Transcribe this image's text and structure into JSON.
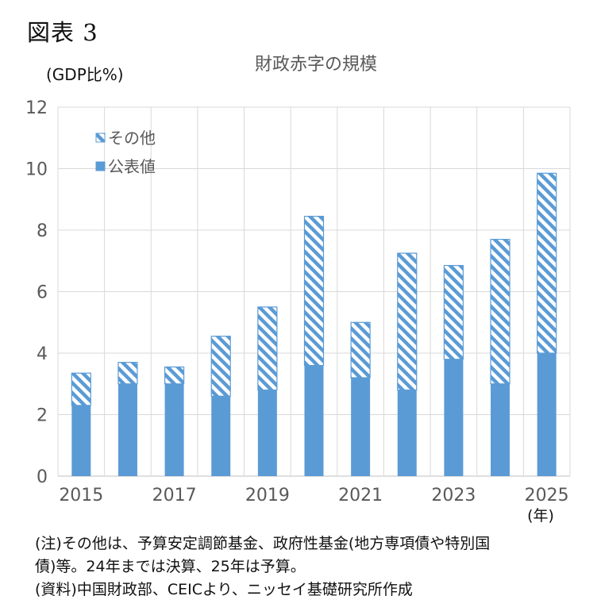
{
  "figure_label": "図表 3",
  "notes": {
    "line1": "(注)その他は、予算安定調節基金、政府性基金(地方専項債や特別国",
    "line2": "債)等。24年までは決算、25年は予算。",
    "line3": "(資料)中国財政部、CEICより、ニッセイ基礎研究所作成"
  },
  "chart_data": {
    "type": "bar",
    "stacked": true,
    "title": "財政赤字の規模",
    "ylabel": "(GDP比%)",
    "xlabel": "(年)",
    "ylim": [
      0,
      12
    ],
    "yticks": [
      "0",
      "2",
      "4",
      "6",
      "8",
      "10",
      "12"
    ],
    "grid": true,
    "legend_position": "top-left",
    "categories": [
      "2015",
      "2016",
      "2017",
      "2018",
      "2019",
      "2020",
      "2021",
      "2022",
      "2023",
      "2024",
      "2025"
    ],
    "xtick_labels": [
      "2015",
      "",
      "2017",
      "",
      "2019",
      "",
      "2021",
      "",
      "2023",
      "",
      "2025"
    ],
    "series": [
      {
        "name": "公表値",
        "pattern": "solid",
        "color": "#5b9bd5",
        "values": [
          2.3,
          3.0,
          3.0,
          2.6,
          2.8,
          3.6,
          3.2,
          2.8,
          3.8,
          3.0,
          4.0
        ]
      },
      {
        "name": "その他",
        "pattern": "hatch",
        "color": "#5b9bd5",
        "values": [
          1.05,
          0.7,
          0.55,
          1.95,
          2.7,
          4.85,
          1.8,
          4.45,
          3.05,
          4.7,
          5.85
        ]
      }
    ],
    "legend_order": [
      "その他",
      "公表値"
    ],
    "colors": {
      "bar": "#5b9bd5",
      "grid": "#d9d9d9",
      "axis": "#bfbfbf",
      "text": "#595959"
    }
  }
}
